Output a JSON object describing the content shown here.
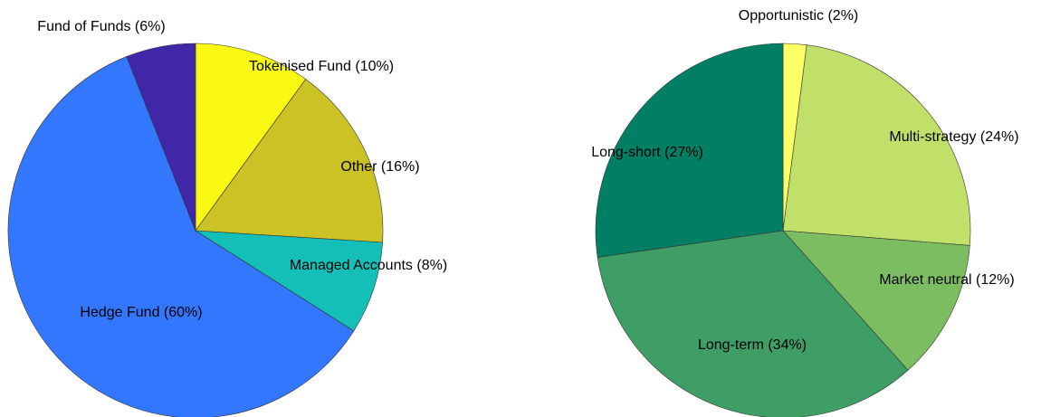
{
  "chart_data": [
    {
      "type": "pie",
      "categories": [
        "Tokenised Fund (10%)",
        "Other (16%)",
        "Managed Accounts (8%)",
        "Hedge Fund (60%)",
        "Fund of Funds (6%)"
      ],
      "values": [
        10,
        16,
        8,
        60,
        6
      ],
      "colors": [
        "#f9f914",
        "#cbc226",
        "#14bfb8",
        "#3377ff",
        "#3f27a8"
      ]
    },
    {
      "type": "pie",
      "categories": [
        "Opportunistic (2%)",
        "Multi-strategy (24%)",
        "Market neutral (12%)",
        "Long-term (34%)",
        "Long-short (27%)"
      ],
      "values": [
        2,
        24,
        12,
        34,
        27
      ],
      "colors": [
        "#ffff66",
        "#c1e06a",
        "#7dbd62",
        "#3f9d66",
        "#007f64"
      ]
    }
  ]
}
